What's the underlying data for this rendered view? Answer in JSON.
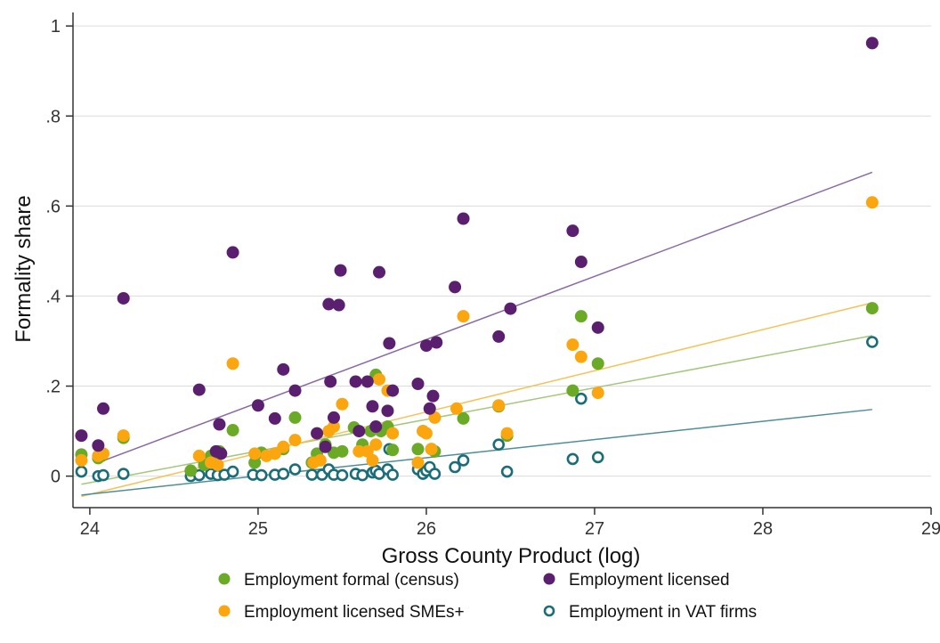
{
  "chart_data": {
    "type": "scatter",
    "xlabel": "Gross County Product (log)",
    "ylabel": "Formality share",
    "xlim": [
      23.9,
      29.0
    ],
    "ylim": [
      -0.07,
      1.03
    ],
    "x_ticks": [
      24,
      25,
      26,
      27,
      28,
      29
    ],
    "x_tick_labels": [
      "24",
      "25",
      "26",
      "27",
      "28",
      "29"
    ],
    "y_ticks": [
      0,
      0.2,
      0.4,
      0.6,
      0.8,
      1
    ],
    "y_tick_labels": [
      "0",
      ".2",
      ".4",
      ".6",
      ".8",
      "1"
    ],
    "grid": true,
    "legend_position": "bottom",
    "series": [
      {
        "name": "Employment formal (census)",
        "color": "#6aaa27",
        "marker": "filled-circle",
        "points": [
          [
            23.95,
            0.048
          ],
          [
            24.05,
            0.04
          ],
          [
            24.07,
            0.045
          ],
          [
            24.2,
            0.085
          ],
          [
            24.6,
            0.012
          ],
          [
            24.68,
            0.025
          ],
          [
            24.72,
            0.045
          ],
          [
            24.77,
            0.055
          ],
          [
            24.85,
            0.102
          ],
          [
            24.98,
            0.03
          ],
          [
            25.02,
            0.052
          ],
          [
            25.1,
            0.05
          ],
          [
            25.15,
            0.06
          ],
          [
            25.22,
            0.13
          ],
          [
            25.32,
            0.03
          ],
          [
            25.35,
            0.05
          ],
          [
            25.4,
            0.07
          ],
          [
            25.45,
            0.052
          ],
          [
            25.5,
            0.055
          ],
          [
            25.57,
            0.108
          ],
          [
            25.62,
            0.07
          ],
          [
            25.67,
            0.1
          ],
          [
            25.7,
            0.225
          ],
          [
            25.73,
            0.1
          ],
          [
            25.77,
            0.11
          ],
          [
            25.8,
            0.058
          ],
          [
            25.95,
            0.06
          ],
          [
            25.98,
            0.1
          ],
          [
            26.03,
            0.06
          ],
          [
            26.05,
            0.055
          ],
          [
            26.22,
            0.128
          ],
          [
            26.43,
            0.155
          ],
          [
            26.48,
            0.09
          ],
          [
            26.87,
            0.19
          ],
          [
            26.92,
            0.355
          ],
          [
            27.02,
            0.25
          ],
          [
            28.65,
            0.373
          ]
        ],
        "fit_line": [
          [
            23.95,
            -0.018
          ],
          [
            28.65,
            0.312
          ]
        ]
      },
      {
        "name": "Employment licensed",
        "color": "#5a1f6e",
        "marker": "filled-circle",
        "points": [
          [
            23.95,
            0.09
          ],
          [
            24.05,
            0.068
          ],
          [
            24.08,
            0.15
          ],
          [
            24.2,
            0.395
          ],
          [
            24.65,
            0.192
          ],
          [
            24.75,
            0.055
          ],
          [
            24.77,
            0.115
          ],
          [
            24.78,
            0.05
          ],
          [
            24.85,
            0.497
          ],
          [
            25.0,
            0.157
          ],
          [
            25.1,
            0.128
          ],
          [
            25.15,
            0.237
          ],
          [
            25.22,
            0.19
          ],
          [
            25.35,
            0.095
          ],
          [
            25.4,
            0.065
          ],
          [
            25.42,
            0.382
          ],
          [
            25.43,
            0.21
          ],
          [
            25.45,
            0.13
          ],
          [
            25.48,
            0.38
          ],
          [
            25.49,
            0.457
          ],
          [
            25.58,
            0.21
          ],
          [
            25.6,
            0.1
          ],
          [
            25.65,
            0.21
          ],
          [
            25.68,
            0.155
          ],
          [
            25.7,
            0.11
          ],
          [
            25.72,
            0.453
          ],
          [
            25.77,
            0.145
          ],
          [
            25.78,
            0.295
          ],
          [
            25.8,
            0.19
          ],
          [
            25.95,
            0.205
          ],
          [
            26.0,
            0.29
          ],
          [
            26.02,
            0.15
          ],
          [
            26.04,
            0.178
          ],
          [
            26.06,
            0.297
          ],
          [
            26.17,
            0.42
          ],
          [
            26.22,
            0.572
          ],
          [
            26.43,
            0.31
          ],
          [
            26.5,
            0.372
          ],
          [
            26.87,
            0.545
          ],
          [
            26.92,
            0.476
          ],
          [
            27.02,
            0.33
          ],
          [
            28.65,
            0.962
          ]
        ],
        "fit_line": [
          [
            24.05,
            0.03
          ],
          [
            28.65,
            0.675
          ]
        ]
      },
      {
        "name": "Employment licensed SMEs+",
        "color": "#fca60f",
        "marker": "filled-circle",
        "points": [
          [
            23.95,
            0.035
          ],
          [
            24.05,
            0.045
          ],
          [
            24.08,
            0.05
          ],
          [
            24.2,
            0.09
          ],
          [
            24.65,
            0.045
          ],
          [
            24.72,
            0.03
          ],
          [
            24.76,
            0.025
          ],
          [
            24.85,
            0.25
          ],
          [
            24.98,
            0.05
          ],
          [
            25.05,
            0.045
          ],
          [
            25.1,
            0.05
          ],
          [
            25.15,
            0.065
          ],
          [
            25.22,
            0.08
          ],
          [
            25.33,
            0.03
          ],
          [
            25.37,
            0.035
          ],
          [
            25.42,
            0.1
          ],
          [
            25.45,
            0.11
          ],
          [
            25.5,
            0.16
          ],
          [
            25.6,
            0.055
          ],
          [
            25.65,
            0.055
          ],
          [
            25.68,
            0.035
          ],
          [
            25.7,
            0.07
          ],
          [
            25.72,
            0.215
          ],
          [
            25.77,
            0.19
          ],
          [
            25.8,
            0.095
          ],
          [
            25.95,
            0.03
          ],
          [
            25.98,
            0.1
          ],
          [
            26.0,
            0.095
          ],
          [
            26.03,
            0.06
          ],
          [
            26.05,
            0.13
          ],
          [
            26.18,
            0.15
          ],
          [
            26.22,
            0.355
          ],
          [
            26.43,
            0.157
          ],
          [
            26.48,
            0.095
          ],
          [
            26.87,
            0.292
          ],
          [
            26.92,
            0.265
          ],
          [
            27.02,
            0.185
          ],
          [
            28.65,
            0.608
          ]
        ],
        "fit_line": [
          [
            23.95,
            -0.045
          ],
          [
            28.65,
            0.385
          ]
        ]
      },
      {
        "name": "Employment in VAT firms",
        "color": "#1b6e78",
        "marker": "hollow-circle",
        "points": [
          [
            23.95,
            0.01
          ],
          [
            24.05,
            0.0
          ],
          [
            24.08,
            0.002
          ],
          [
            24.2,
            0.005
          ],
          [
            24.6,
            0.0
          ],
          [
            24.65,
            0.002
          ],
          [
            24.72,
            0.005
          ],
          [
            24.76,
            0.002
          ],
          [
            24.8,
            0.003
          ],
          [
            24.85,
            0.01
          ],
          [
            24.97,
            0.003
          ],
          [
            25.02,
            0.002
          ],
          [
            25.1,
            0.003
          ],
          [
            25.15,
            0.005
          ],
          [
            25.22,
            0.015
          ],
          [
            25.32,
            0.003
          ],
          [
            25.38,
            0.003
          ],
          [
            25.42,
            0.015
          ],
          [
            25.45,
            0.003
          ],
          [
            25.5,
            0.002
          ],
          [
            25.58,
            0.005
          ],
          [
            25.62,
            0.002
          ],
          [
            25.68,
            0.008
          ],
          [
            25.7,
            0.012
          ],
          [
            25.72,
            0.005
          ],
          [
            25.77,
            0.015
          ],
          [
            25.78,
            0.06
          ],
          [
            25.8,
            0.003
          ],
          [
            25.95,
            0.015
          ],
          [
            25.98,
            0.005
          ],
          [
            26.0,
            0.012
          ],
          [
            26.02,
            0.02
          ],
          [
            26.05,
            0.005
          ],
          [
            26.17,
            0.02
          ],
          [
            26.22,
            0.035
          ],
          [
            26.43,
            0.07
          ],
          [
            26.48,
            0.01
          ],
          [
            26.87,
            0.038
          ],
          [
            26.92,
            0.172
          ],
          [
            27.02,
            0.042
          ],
          [
            28.65,
            0.298
          ]
        ],
        "fit_line": [
          [
            23.95,
            -0.042
          ],
          [
            28.65,
            0.148
          ]
        ]
      }
    ]
  }
}
